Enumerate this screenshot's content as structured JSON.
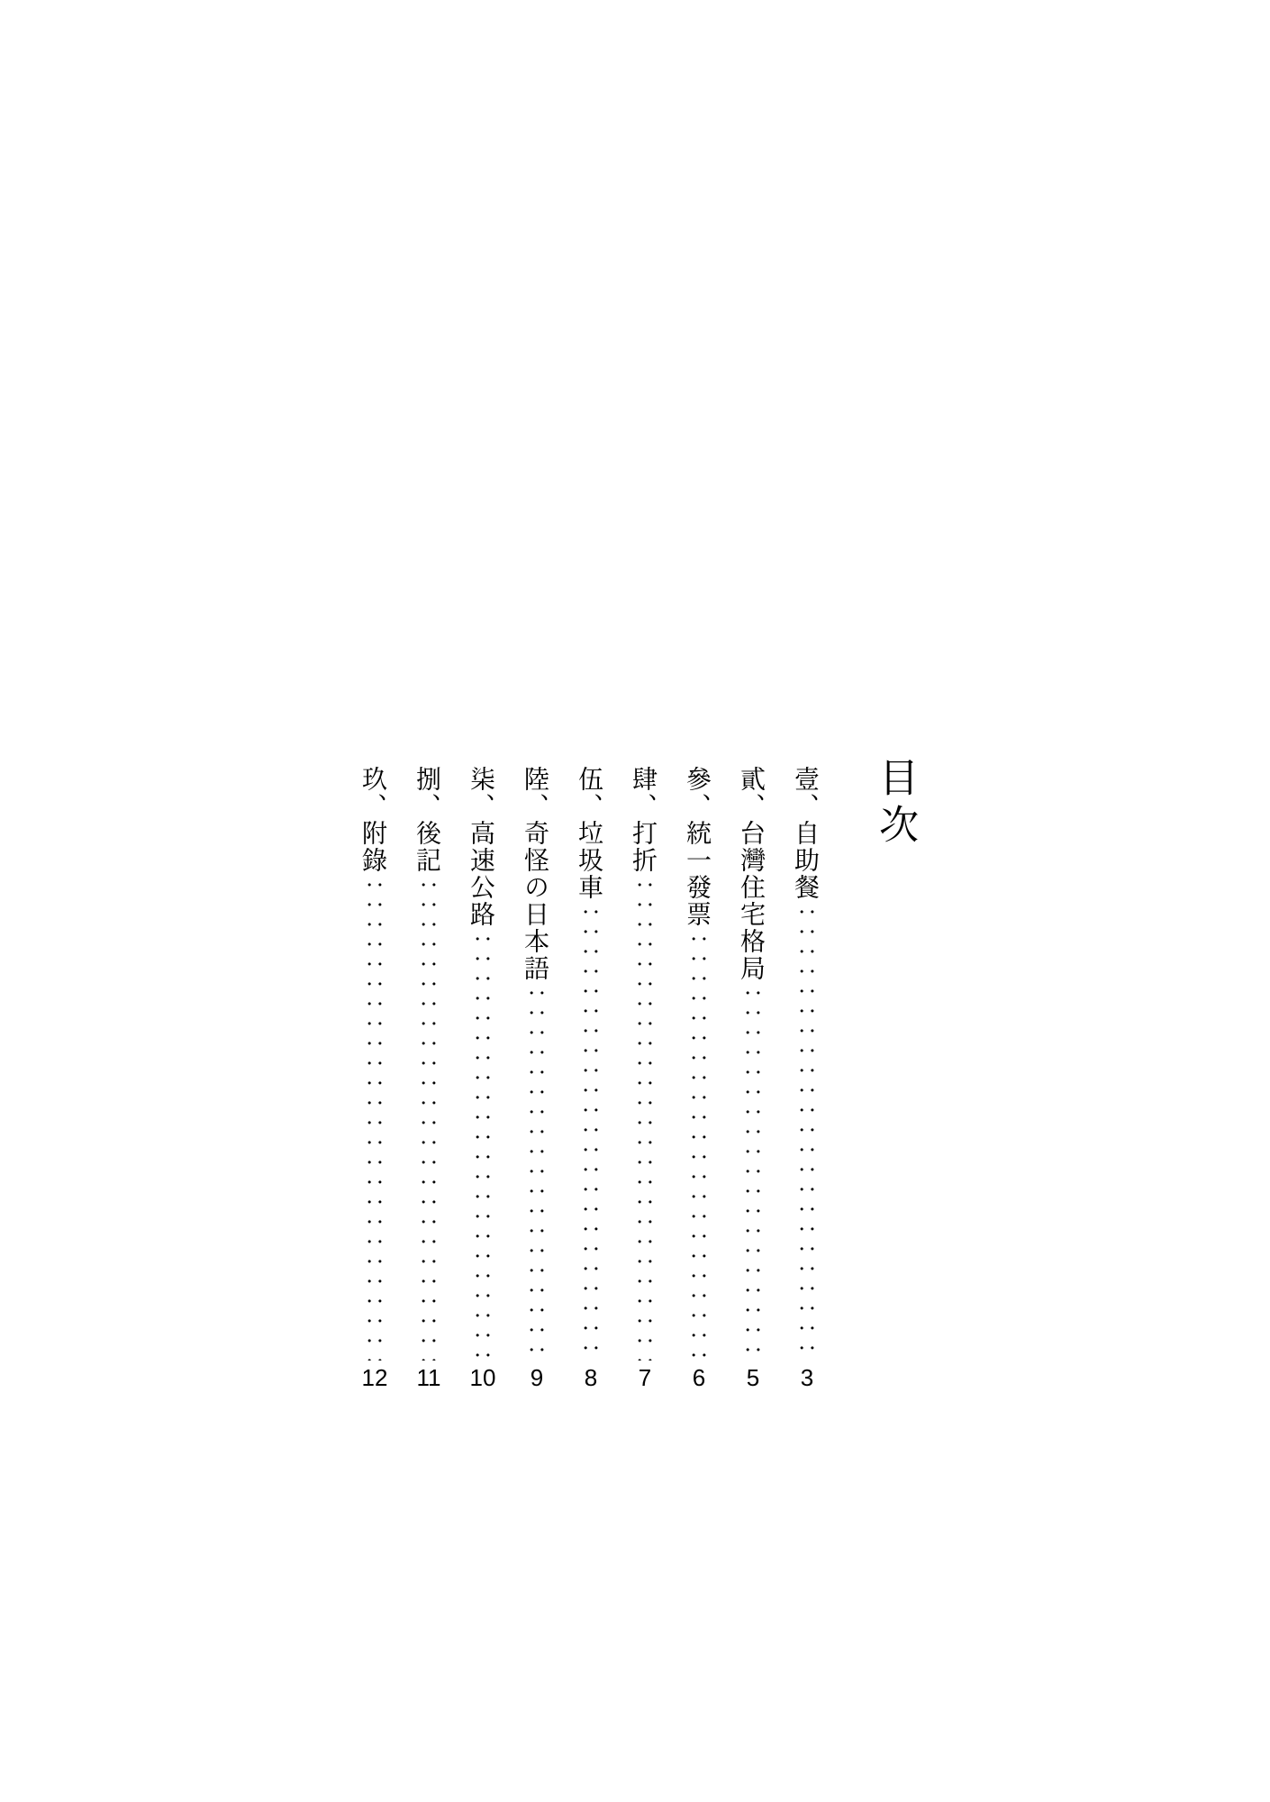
{
  "toc": {
    "title": "目次",
    "entries": [
      {
        "label": "壹、自助餐",
        "page": "3"
      },
      {
        "label": "貳、台灣住宅格局",
        "page": "5"
      },
      {
        "label": "參、統一發票",
        "page": "6"
      },
      {
        "label": "肆、打折",
        "page": "7"
      },
      {
        "label": "伍、垃圾車",
        "page": "8"
      },
      {
        "label": "陸、奇怪の日本語",
        "page": "9"
      },
      {
        "label": "柒、高速公路",
        "page": "10"
      },
      {
        "label": "捌、後記",
        "page": "11"
      },
      {
        "label": "玖、附錄",
        "page": "12"
      }
    ],
    "style": {
      "text_color": "#000000",
      "background_color": "#ffffff",
      "title_fontsize": 44,
      "entry_fontsize": 28,
      "page_fontsize": 26,
      "column_height": 700,
      "column_gap": 20
    }
  }
}
